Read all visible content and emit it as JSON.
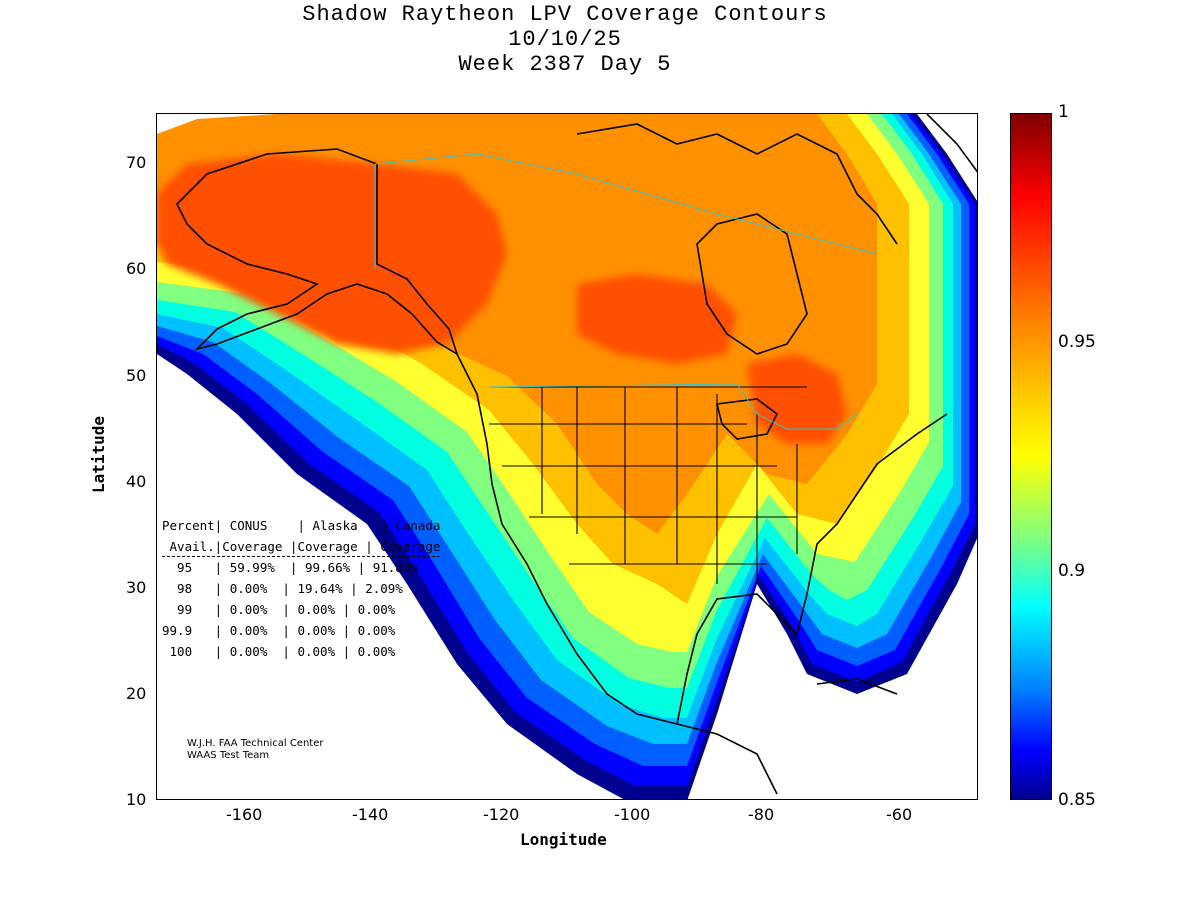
{
  "title": {
    "line1": "Shadow Raytheon LPV Coverage Contours",
    "line2": "10/10/25",
    "line3": "Week 2387 Day 5"
  },
  "axes": {
    "xlabel": "Longitude",
    "ylabel": "Latitude",
    "xlim": [
      -175,
      -50
    ],
    "ylim": [
      10,
      75
    ],
    "xticks": [
      "-160",
      "-140",
      "-120",
      "-100",
      "-80",
      "-60"
    ],
    "yticks": [
      "70",
      "60",
      "50",
      "40",
      "30",
      "20",
      "10"
    ]
  },
  "colorbar": {
    "range": [
      0.85,
      1
    ],
    "ticks": [
      "1",
      "0.95",
      "0.9",
      "0.85"
    ]
  },
  "stats_table": {
    "header1": "Percent| CONUS    | Alaska   | Canada",
    "header2": " Avail.|Coverage |Coverage | Coverage",
    "rows": [
      "  95   | 59.99%  | 99.66% | 91.83%",
      "  98   | 0.00%  | 19.64% | 2.09%",
      "  99   | 0.00%  | 0.00% | 0.00%",
      "99.9   | 0.00%  | 0.00% | 0.00%",
      " 100   | 0.00%  | 0.00% | 0.00%"
    ]
  },
  "credit": {
    "line1": "W.J.H. FAA Technical Center",
    "line2": "WAAS Test Team"
  }
}
